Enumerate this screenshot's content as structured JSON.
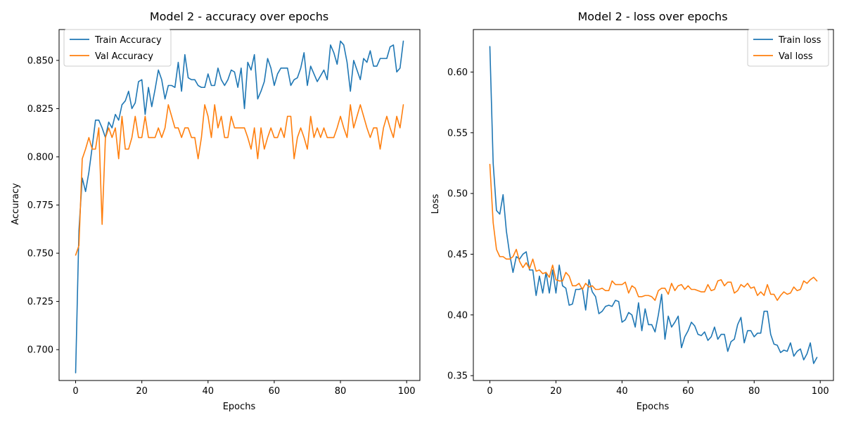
{
  "chart_data": [
    {
      "type": "line",
      "title": "Model 2 - accuracy over epochs",
      "xlabel": "Epochs",
      "ylabel": "Accuracy",
      "xlim": [
        -5,
        104
      ],
      "ylim": [
        0.684,
        0.866
      ],
      "xticks": [
        0,
        20,
        40,
        60,
        80,
        100
      ],
      "yticks": [
        0.7,
        0.725,
        0.75,
        0.775,
        0.8,
        0.825,
        0.85
      ],
      "ytick_labels": [
        "0.700",
        "0.725",
        "0.750",
        "0.775",
        "0.800",
        "0.825",
        "0.850"
      ],
      "legend": "upper-left",
      "grid": false,
      "series": [
        {
          "name": "Train Accuracy",
          "color": "#1f77b4",
          "values": [
            0.688,
            0.762,
            0.789,
            0.782,
            0.792,
            0.805,
            0.819,
            0.819,
            0.815,
            0.81,
            0.818,
            0.815,
            0.822,
            0.819,
            0.827,
            0.829,
            0.834,
            0.825,
            0.828,
            0.839,
            0.84,
            0.822,
            0.836,
            0.826,
            0.835,
            0.845,
            0.84,
            0.83,
            0.837,
            0.837,
            0.836,
            0.849,
            0.834,
            0.853,
            0.841,
            0.84,
            0.84,
            0.837,
            0.836,
            0.836,
            0.843,
            0.837,
            0.837,
            0.846,
            0.84,
            0.837,
            0.84,
            0.845,
            0.844,
            0.836,
            0.846,
            0.825,
            0.849,
            0.845,
            0.853,
            0.83,
            0.834,
            0.839,
            0.851,
            0.846,
            0.837,
            0.843,
            0.846,
            0.846,
            0.846,
            0.837,
            0.84,
            0.841,
            0.846,
            0.854,
            0.837,
            0.847,
            0.843,
            0.839,
            0.842,
            0.845,
            0.84,
            0.858,
            0.854,
            0.848,
            0.86,
            0.858,
            0.849,
            0.834,
            0.85,
            0.845,
            0.84,
            0.851,
            0.849,
            0.855,
            0.847,
            0.847,
            0.851,
            0.851,
            0.851,
            0.857,
            0.858,
            0.844,
            0.846,
            0.86
          ]
        },
        {
          "name": "Val Accuracy",
          "color": "#ff7f0e",
          "values": [
            0.749,
            0.754,
            0.799,
            0.804,
            0.81,
            0.804,
            0.804,
            0.815,
            0.765,
            0.81,
            0.815,
            0.81,
            0.815,
            0.799,
            0.821,
            0.804,
            0.804,
            0.81,
            0.821,
            0.81,
            0.81,
            0.821,
            0.81,
            0.81,
            0.81,
            0.815,
            0.81,
            0.815,
            0.827,
            0.821,
            0.815,
            0.815,
            0.81,
            0.815,
            0.815,
            0.81,
            0.81,
            0.799,
            0.81,
            0.827,
            0.821,
            0.81,
            0.827,
            0.815,
            0.821,
            0.81,
            0.81,
            0.821,
            0.815,
            0.815,
            0.815,
            0.815,
            0.81,
            0.804,
            0.815,
            0.799,
            0.815,
            0.804,
            0.81,
            0.815,
            0.81,
            0.81,
            0.815,
            0.81,
            0.821,
            0.821,
            0.799,
            0.81,
            0.815,
            0.81,
            0.804,
            0.821,
            0.81,
            0.815,
            0.81,
            0.815,
            0.81,
            0.81,
            0.81,
            0.815,
            0.821,
            0.815,
            0.81,
            0.827,
            0.815,
            0.821,
            0.827,
            0.821,
            0.815,
            0.81,
            0.815,
            0.815,
            0.804,
            0.815,
            0.821,
            0.815,
            0.81,
            0.821,
            0.815,
            0.827
          ]
        }
      ]
    },
    {
      "type": "line",
      "title": "Model 2 - loss over epochs",
      "xlabel": "Epochs",
      "ylabel": "Loss",
      "xlim": [
        -5,
        104
      ],
      "ylim": [
        0.346,
        0.635
      ],
      "xticks": [
        0,
        20,
        40,
        60,
        80,
        100
      ],
      "yticks": [
        0.35,
        0.4,
        0.45,
        0.5,
        0.55,
        0.6
      ],
      "ytick_labels": [
        "0.35",
        "0.40",
        "0.45",
        "0.50",
        "0.55",
        "0.60"
      ],
      "legend": "upper-right",
      "grid": false,
      "series": [
        {
          "name": "Train loss",
          "color": "#1f77b4",
          "values": [
            0.621,
            0.525,
            0.486,
            0.483,
            0.499,
            0.469,
            0.45,
            0.435,
            0.448,
            0.446,
            0.45,
            0.452,
            0.437,
            0.437,
            0.416,
            0.432,
            0.418,
            0.435,
            0.418,
            0.437,
            0.418,
            0.441,
            0.424,
            0.422,
            0.408,
            0.409,
            0.421,
            0.421,
            0.422,
            0.404,
            0.429,
            0.419,
            0.415,
            0.401,
            0.403,
            0.407,
            0.408,
            0.407,
            0.412,
            0.411,
            0.394,
            0.396,
            0.402,
            0.4,
            0.39,
            0.41,
            0.387,
            0.405,
            0.392,
            0.392,
            0.386,
            0.4,
            0.417,
            0.38,
            0.399,
            0.39,
            0.394,
            0.399,
            0.373,
            0.382,
            0.387,
            0.394,
            0.391,
            0.384,
            0.383,
            0.386,
            0.379,
            0.382,
            0.39,
            0.38,
            0.384,
            0.384,
            0.37,
            0.378,
            0.38,
            0.392,
            0.398,
            0.377,
            0.387,
            0.387,
            0.382,
            0.385,
            0.385,
            0.403,
            0.403,
            0.384,
            0.376,
            0.375,
            0.369,
            0.371,
            0.37,
            0.377,
            0.366,
            0.37,
            0.372,
            0.363,
            0.368,
            0.377,
            0.36,
            0.365
          ]
        },
        {
          "name": "Val loss",
          "color": "#ff7f0e",
          "values": [
            0.524,
            0.476,
            0.454,
            0.448,
            0.448,
            0.446,
            0.446,
            0.448,
            0.454,
            0.444,
            0.439,
            0.443,
            0.438,
            0.446,
            0.436,
            0.437,
            0.434,
            0.435,
            0.431,
            0.441,
            0.429,
            0.428,
            0.428,
            0.435,
            0.432,
            0.424,
            0.424,
            0.426,
            0.421,
            0.426,
            0.423,
            0.424,
            0.421,
            0.421,
            0.422,
            0.42,
            0.42,
            0.428,
            0.425,
            0.425,
            0.425,
            0.427,
            0.418,
            0.424,
            0.422,
            0.415,
            0.415,
            0.416,
            0.416,
            0.415,
            0.412,
            0.42,
            0.422,
            0.422,
            0.417,
            0.426,
            0.42,
            0.424,
            0.425,
            0.421,
            0.424,
            0.421,
            0.421,
            0.42,
            0.419,
            0.419,
            0.425,
            0.42,
            0.421,
            0.428,
            0.429,
            0.424,
            0.427,
            0.427,
            0.418,
            0.42,
            0.425,
            0.423,
            0.426,
            0.422,
            0.423,
            0.416,
            0.419,
            0.416,
            0.425,
            0.417,
            0.417,
            0.412,
            0.416,
            0.419,
            0.417,
            0.418,
            0.423,
            0.42,
            0.421,
            0.428,
            0.426,
            0.429,
            0.431,
            0.428
          ]
        }
      ]
    }
  ]
}
